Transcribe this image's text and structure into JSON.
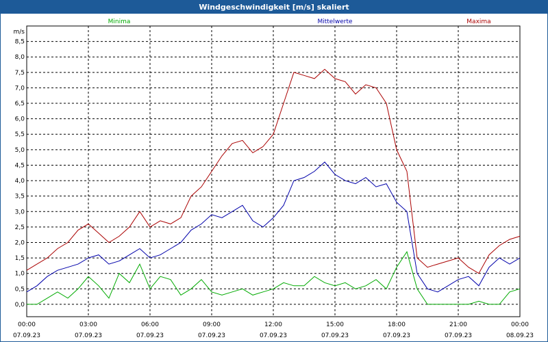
{
  "title": "Windgeschwindigkeit [m/s] skaliert",
  "colors": {
    "title_bg": "#1d5a98",
    "minima": "#00aa00",
    "mittelwerte": "#0000aa",
    "maxima": "#aa0000",
    "grid": "#000000"
  },
  "chart_data": {
    "type": "line",
    "title": "Windgeschwindigkeit [m/s] skaliert",
    "ylabel": "m/s",
    "xlabel": "",
    "ylim": [
      -0.4,
      9.0
    ],
    "xlim": [
      0,
      24
    ],
    "y_ticks": [
      "0,0",
      "0,5",
      "1,0",
      "1,5",
      "2,0",
      "2,5",
      "3,0",
      "3,5",
      "4,0",
      "4,5",
      "5,0",
      "5,5",
      "6,0",
      "6,5",
      "7,0",
      "7,5",
      "8,0",
      "8,5"
    ],
    "y_tick_values": [
      0,
      0.5,
      1,
      1.5,
      2,
      2.5,
      3,
      3.5,
      4,
      4.5,
      5,
      5.5,
      6,
      6.5,
      7,
      7.5,
      8,
      8.5
    ],
    "x_ticks": [
      {
        "time": "00:00",
        "date": "07.09.23"
      },
      {
        "time": "03:00",
        "date": "07.09.23"
      },
      {
        "time": "06:00",
        "date": "07.09.23"
      },
      {
        "time": "09:00",
        "date": "07.09.23"
      },
      {
        "time": "12:00",
        "date": "07.09.23"
      },
      {
        "time": "15:00",
        "date": "07.09.23"
      },
      {
        "time": "18:00",
        "date": "07.09.23"
      },
      {
        "time": "21:00",
        "date": "07.09.23"
      },
      {
        "time": "00:00",
        "date": "08.09.23"
      }
    ],
    "x_tick_hours": [
      0,
      3,
      6,
      9,
      12,
      15,
      18,
      21,
      24
    ],
    "x": [
      0,
      0.5,
      1,
      1.5,
      2,
      2.5,
      3,
      3.5,
      4,
      4.5,
      5,
      5.5,
      6,
      6.5,
      7,
      7.5,
      8,
      8.5,
      9,
      9.5,
      10,
      10.5,
      11,
      11.5,
      12,
      12.5,
      13,
      13.5,
      14,
      14.5,
      15,
      15.5,
      16,
      16.5,
      17,
      17.5,
      18,
      18.5,
      19,
      19.5,
      20,
      20.5,
      21,
      21.5,
      22,
      22.5,
      23,
      23.5,
      24
    ],
    "series": [
      {
        "name": "Minima",
        "values": [
          0,
          0,
          0.2,
          0.4,
          0.2,
          0.5,
          0.9,
          0.6,
          0.2,
          1.0,
          0.7,
          1.3,
          0.5,
          0.9,
          0.8,
          0.3,
          0.5,
          0.8,
          0.4,
          0.3,
          0.4,
          0.5,
          0.3,
          0.4,
          0.5,
          0.7,
          0.6,
          0.6,
          0.9,
          0.7,
          0.6,
          0.7,
          0.5,
          0.6,
          0.8,
          0.5,
          1.2,
          1.7,
          0.5,
          0,
          0,
          0,
          0,
          0,
          0.1,
          0,
          0,
          0.4,
          0.5
        ]
      },
      {
        "name": "Mittelwerte",
        "values": [
          0.4,
          0.6,
          0.9,
          1.1,
          1.2,
          1.3,
          1.5,
          1.6,
          1.3,
          1.4,
          1.6,
          1.8,
          1.5,
          1.6,
          1.8,
          2.0,
          2.4,
          2.6,
          2.9,
          2.8,
          3.0,
          3.2,
          2.7,
          2.5,
          2.8,
          3.2,
          4.0,
          4.1,
          4.3,
          4.6,
          4.2,
          4.0,
          3.9,
          4.1,
          3.8,
          3.9,
          3.3,
          3.0,
          1.0,
          0.5,
          0.4,
          0.6,
          0.8,
          0.9,
          0.6,
          1.2,
          1.5,
          1.3,
          1.5
        ]
      },
      {
        "name": "Maxima",
        "values": [
          1.1,
          1.3,
          1.5,
          1.8,
          2.0,
          2.4,
          2.6,
          2.3,
          2.0,
          2.2,
          2.5,
          3.0,
          2.5,
          2.7,
          2.6,
          2.8,
          3.5,
          3.8,
          4.3,
          4.8,
          5.2,
          5.3,
          4.9,
          5.1,
          5.5,
          6.5,
          7.5,
          7.4,
          7.3,
          7.6,
          7.3,
          7.2,
          6.8,
          7.1,
          7.0,
          6.5,
          5.0,
          4.3,
          1.5,
          1.2,
          1.3,
          1.4,
          1.5,
          1.2,
          1.0,
          1.6,
          1.9,
          2.1,
          2.2
        ]
      }
    ],
    "legend": [
      "Minima",
      "Mittelwerte",
      "Maxima"
    ],
    "legend_position": "top",
    "grid": true
  }
}
